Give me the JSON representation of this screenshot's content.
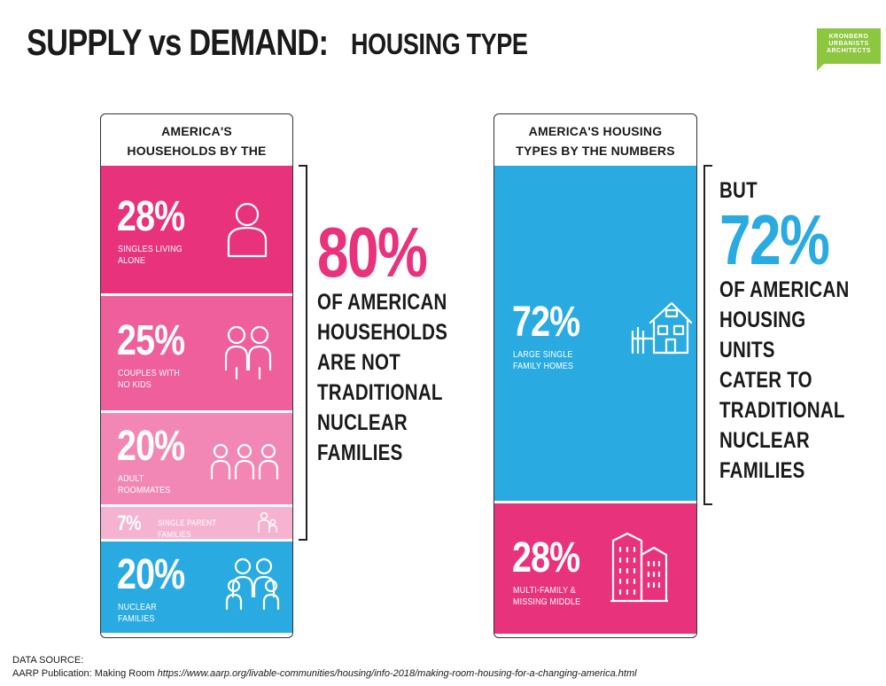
{
  "header": {
    "title_main": "SUPPLY vs DEMAND:",
    "title_sub": "HOUSING TYPE",
    "logo_lines": [
      "KRONBERG",
      "URBANISTS",
      "+",
      "ARCHITECTS"
    ],
    "logo_color": "#8dc63f"
  },
  "colors": {
    "magenta": "#e8327c",
    "pink": "#ef5f9b",
    "light_pink": "#f287b5",
    "pale_pink": "#f5b3d1",
    "blue": "#29abe2"
  },
  "chart_data": [
    {
      "type": "bar",
      "stacked": true,
      "title": "AMERICA'S HOUSEHOLDS BY THE NUMBERS",
      "unit": "%",
      "segments": [
        {
          "label": "SINGLES LIVING ALONE",
          "value": 28,
          "pct_text": "28%",
          "icon": "single-person-icon",
          "color": "#e8327c"
        },
        {
          "label": "COUPLES WITH NO KIDS",
          "value": 25,
          "pct_text": "25%",
          "icon": "couple-icon",
          "color": "#ef5f9b"
        },
        {
          "label": "ADULT ROOMMATES",
          "value": 20,
          "pct_text": "20%",
          "icon": "roommates-icon",
          "color": "#f287b5"
        },
        {
          "label": "SINGLE PARENT FAMILIES",
          "value": 7,
          "pct_text": "7%",
          "icon": "single-parent-icon",
          "color": "#f5b3d1"
        },
        {
          "label": "NUCLEAR FAMILIES",
          "value": 20,
          "pct_text": "20%",
          "icon": "nuclear-family-icon",
          "color": "#29abe2"
        }
      ]
    },
    {
      "type": "bar",
      "stacked": true,
      "title": "AMERICA'S HOUSING TYPES BY THE NUMBERS",
      "unit": "%",
      "segments": [
        {
          "label": "LARGE SINGLE FAMILY HOMES",
          "value": 72,
          "pct_text": "72%",
          "icon": "house-fence-icon",
          "color": "#29abe2"
        },
        {
          "label": "MULTI-FAMILY & MISSING MIDDLE",
          "value": 28,
          "pct_text": "28%",
          "icon": "apartment-buildings-icon",
          "color": "#e8327c"
        }
      ]
    }
  ],
  "callouts": {
    "left": {
      "pct": "80%",
      "lines": [
        "OF AMERICAN",
        "HOUSEHOLDS",
        "ARE NOT",
        "TRADITIONAL",
        "NUCLEAR",
        "FAMILIES"
      ]
    },
    "right": {
      "lead": "BUT",
      "pct": "72%",
      "lines": [
        "OF AMERICAN",
        "HOUSING UNITS",
        "CATER TO",
        "TRADITIONAL",
        "NUCLEAR",
        "FAMILIES"
      ]
    }
  },
  "source": {
    "heading": "DATA SOURCE:",
    "publication": "AARP Publication: Making Room",
    "url": "https://www.aarp.org/livable-communities/housing/info-2018/making-room-housing-for-a-changing-america.html"
  }
}
